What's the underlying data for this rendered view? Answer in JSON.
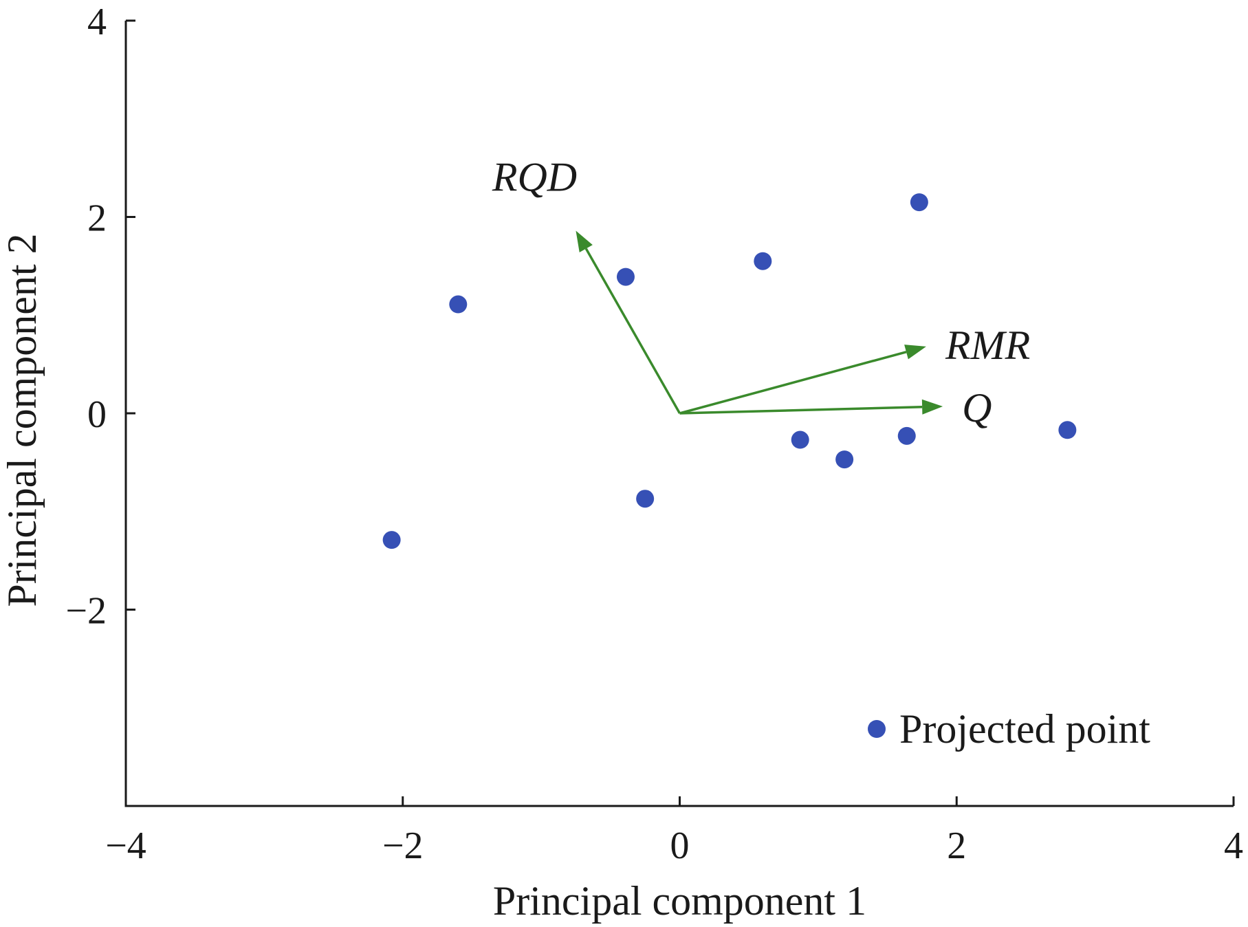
{
  "chart_data": {
    "type": "scatter",
    "xlabel": "Principal component 1",
    "ylabel": "Principal component 2",
    "xlim": [
      -4,
      4
    ],
    "ylim": [
      -4,
      4
    ],
    "x_ticks": [
      -4,
      -2,
      0,
      2,
      4
    ],
    "y_ticks": [
      -2,
      0,
      2,
      4
    ],
    "x_tick_labels": [
      "−4",
      "−2",
      "0",
      "2",
      "4"
    ],
    "y_tick_labels": [
      "−2",
      "0",
      "2",
      "4"
    ],
    "grid": false,
    "legend_position": "bottom-right",
    "series": [
      {
        "name": "Projected point",
        "color": "#3650b5",
        "points": [
          {
            "x": -2.08,
            "y": -1.29
          },
          {
            "x": -1.6,
            "y": 1.11
          },
          {
            "x": -0.39,
            "y": 1.39
          },
          {
            "x": -0.25,
            "y": -0.87
          },
          {
            "x": 0.6,
            "y": 1.55
          },
          {
            "x": 0.87,
            "y": -0.27
          },
          {
            "x": 1.19,
            "y": -0.47
          },
          {
            "x": 1.64,
            "y": -0.23
          },
          {
            "x": 1.73,
            "y": 2.15
          },
          {
            "x": 2.8,
            "y": -0.17
          }
        ]
      }
    ],
    "vectors": {
      "color": "#3a8a2c",
      "items": [
        {
          "label": "RQD",
          "x": -0.75,
          "y": 1.86
        },
        {
          "label": "RMR",
          "x": 1.78,
          "y": 0.68
        },
        {
          "label": "Q",
          "x": 1.9,
          "y": 0.07
        }
      ]
    }
  }
}
